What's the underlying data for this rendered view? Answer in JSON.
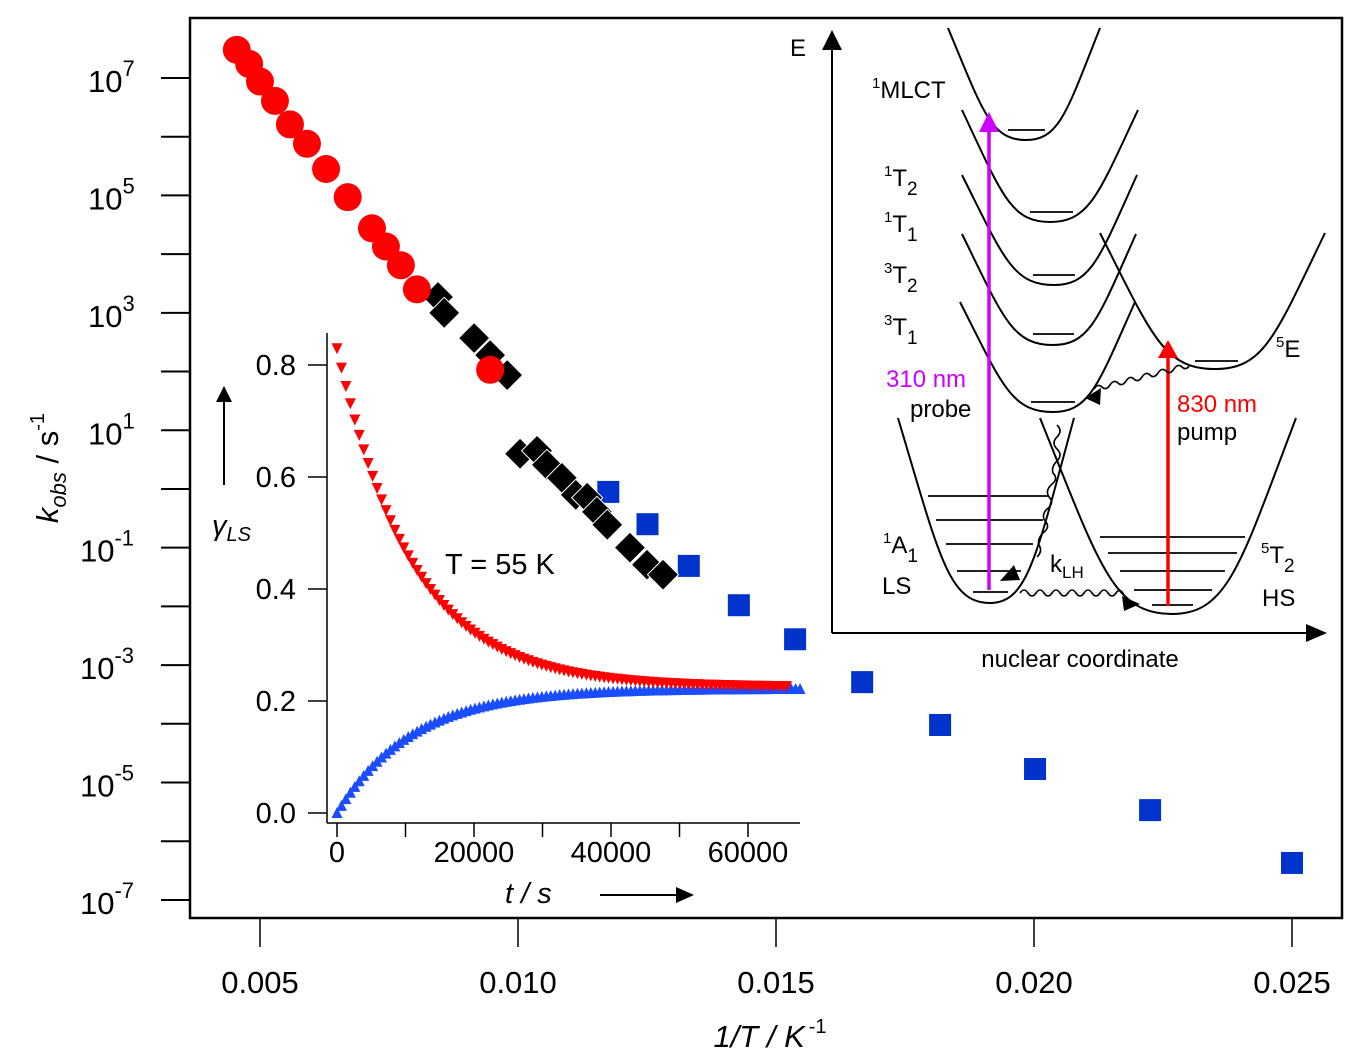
{
  "chart_data": [
    {
      "id": "main",
      "type": "scatter",
      "title": "",
      "xlabel": "1/T / K",
      "xlabel_sup": "-1",
      "ylabel_main": "k",
      "ylabel_sub": "obs",
      "ylabel_units": " / s",
      "ylabel_sup": "-1",
      "xscale": "linear",
      "yscale": "log",
      "xlim": [
        0.00365,
        0.0259
      ],
      "ylim_log10": [
        -7.3,
        8.0
      ],
      "xticks": [
        {
          "value": 0.005,
          "label": "0.005"
        },
        {
          "value": 0.01,
          "label": "0.010"
        },
        {
          "value": 0.015,
          "label": "0.015"
        },
        {
          "value": 0.02,
          "label": "0.020"
        },
        {
          "value": 0.025,
          "label": "0.025"
        }
      ],
      "yticks_major": [
        {
          "log10": 7,
          "base": "10",
          "exp": "7"
        },
        {
          "log10": 5,
          "base": "10",
          "exp": "5"
        },
        {
          "log10": 3,
          "base": "10",
          "exp": "3"
        },
        {
          "log10": 1,
          "base": "10",
          "exp": "1"
        },
        {
          "log10": -1,
          "base": "10",
          "exp": "-1"
        },
        {
          "log10": -3,
          "base": "10",
          "exp": "-3"
        },
        {
          "log10": -5,
          "base": "10",
          "exp": "-5"
        },
        {
          "log10": -7,
          "base": "10",
          "exp": "-7"
        }
      ],
      "yticks_minor_log10": [
        6,
        4,
        2,
        0,
        -2,
        -4,
        -6
      ],
      "grid": false,
      "legend": "none",
      "series": [
        {
          "name": "red-circles",
          "marker": "circle",
          "color": "#ff0000",
          "points": [
            {
              "x": 0.00455,
              "log10_k": 7.48
            },
            {
              "x": 0.00479,
              "log10_k": 7.24
            },
            {
              "x": 0.005,
              "log10_k": 6.94
            },
            {
              "x": 0.00529,
              "log10_k": 6.61
            },
            {
              "x": 0.00558,
              "log10_k": 6.21
            },
            {
              "x": 0.00591,
              "log10_k": 5.88
            },
            {
              "x": 0.00628,
              "log10_k": 5.45
            },
            {
              "x": 0.0067,
              "log10_k": 4.97
            },
            {
              "x": 0.00717,
              "log10_k": 4.44
            },
            {
              "x": 0.00744,
              "log10_k": 4.13
            },
            {
              "x": 0.00773,
              "log10_k": 3.81
            },
            {
              "x": 0.00804,
              "log10_k": 3.4
            },
            {
              "x": 0.00946,
              "log10_k": 2.03
            }
          ]
        },
        {
          "name": "blue-squares",
          "marker": "square",
          "color": "#0033cc",
          "points": [
            {
              "x": 0.01175,
              "log10_k": -0.05
            },
            {
              "x": 0.01251,
              "log10_k": -0.6
            },
            {
              "x": 0.01331,
              "log10_k": -1.31
            },
            {
              "x": 0.01428,
              "log10_k": -1.98
            },
            {
              "x": 0.01537,
              "log10_k": -2.56
            },
            {
              "x": 0.01667,
              "log10_k": -3.29
            },
            {
              "x": 0.01818,
              "log10_k": -4.02
            },
            {
              "x": 0.02002,
              "log10_k": -4.77
            },
            {
              "x": 0.02225,
              "log10_k": -5.47
            },
            {
              "x": 0.025,
              "log10_k": -6.37
            }
          ]
        },
        {
          "name": "black-diamonds",
          "marker": "diamond",
          "color": "#000000",
          "points": [
            {
              "x": 0.00845,
              "log10_k": 3.27
            },
            {
              "x": 0.00857,
              "log10_k": 3.0
            },
            {
              "x": 0.00915,
              "log10_k": 2.57
            },
            {
              "x": 0.00946,
              "log10_k": 2.28
            },
            {
              "x": 0.00979,
              "log10_k": 1.94
            },
            {
              "x": 0.01004,
              "log10_k": 0.6
            },
            {
              "x": 0.01037,
              "log10_k": 0.65
            },
            {
              "x": 0.01056,
              "log10_k": 0.41
            },
            {
              "x": 0.01085,
              "log10_k": 0.19
            },
            {
              "x": 0.01112,
              "log10_k": -0.1
            },
            {
              "x": 0.01134,
              "log10_k": -0.15
            },
            {
              "x": 0.01153,
              "log10_k": -0.39
            },
            {
              "x": 0.01173,
              "log10_k": -0.61
            },
            {
              "x": 0.01217,
              "log10_k": -1.0
            },
            {
              "x": 0.0125,
              "log10_k": -1.29
            },
            {
              "x": 0.01281,
              "log10_k": -1.46
            }
          ]
        }
      ]
    },
    {
      "id": "inset-kinetics",
      "type": "scatter",
      "xlabel": "t / s",
      "ylabel": "γ",
      "ylabel_sub": "LS",
      "annotation": "T = 55 K",
      "xlim": [
        -1500,
        67500
      ],
      "ylim": [
        -0.04,
        0.87
      ],
      "xticks": [
        {
          "value": 0,
          "label": "0"
        },
        {
          "value": 20000,
          "label": "20000"
        },
        {
          "value": 40000,
          "label": "40000"
        },
        {
          "value": 60000,
          "label": "60000"
        }
      ],
      "xticks_minor": [
        10000,
        30000,
        50000
      ],
      "yticks": [
        {
          "value": 0.0,
          "label": "0.0"
        },
        {
          "value": 0.2,
          "label": "0.2"
        },
        {
          "value": 0.4,
          "label": "0.4"
        },
        {
          "value": 0.6,
          "label": "0.6"
        },
        {
          "value": 0.8,
          "label": "0.8"
        }
      ],
      "grid": false,
      "legend": "none",
      "series": [
        {
          "name": "relaxation-from-LS",
          "marker": "triangle-down",
          "color": "#ff0000",
          "model": {
            "form": "eq + (start - eq) * exp(-t/tau)",
            "start": 0.83,
            "eq": 0.225,
            "tau_s": 11000
          },
          "t_start": 0,
          "t_end": 65800,
          "t_step": 650
        },
        {
          "name": "relaxation-from-HS",
          "marker": "triangle-up",
          "color": "#1a4dff",
          "model": {
            "form": "eq + (start - eq) * exp(-t/tau)",
            "start": 0.0,
            "eq": 0.222,
            "tau_s": 11000
          },
          "t_start": 0,
          "t_end": 67800,
          "t_step": 650
        }
      ]
    }
  ],
  "diagram": {
    "axis_y_label": "E",
    "axis_x_label": "nuclear coordinate",
    "states": [
      {
        "id": "mlct",
        "sup": "1",
        "name": "MLCT",
        "sub": ""
      },
      {
        "id": "1T2",
        "sup": "1",
        "name": "T",
        "sub": "2"
      },
      {
        "id": "1T1",
        "sup": "1",
        "name": "T",
        "sub": "1"
      },
      {
        "id": "3T2",
        "sup": "3",
        "name": "T",
        "sub": "2"
      },
      {
        "id": "3T1",
        "sup": "3",
        "name": "T",
        "sub": "1"
      },
      {
        "id": "5E",
        "sup": "5",
        "name": "E",
        "sub": ""
      },
      {
        "id": "1A1",
        "sup": "1",
        "name": "A",
        "sub": "1"
      },
      {
        "id": "5T2",
        "sup": "5",
        "name": "T",
        "sub": "2"
      }
    ],
    "ls_label": "LS",
    "hs_label": "HS",
    "probe": {
      "wavelength": "310 nm",
      "label": "probe",
      "color": "#cc00ff"
    },
    "pump": {
      "wavelength": "830 nm",
      "label": "pump",
      "color": "#ff0000"
    },
    "rate_label": "k",
    "rate_sub": "LH"
  }
}
